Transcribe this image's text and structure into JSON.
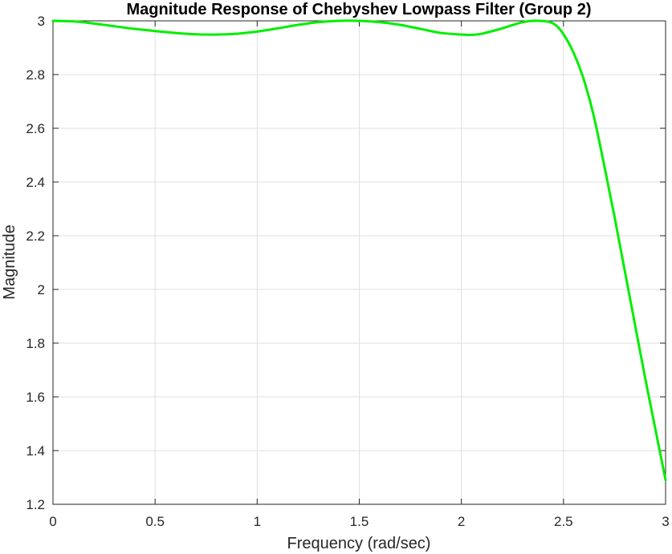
{
  "chart_data": {
    "type": "line",
    "title": "Magnitude Response of Chebyshev Lowpass Filter (Group 2)",
    "xlabel": "Frequency (rad/sec)",
    "ylabel": "Magnitude",
    "xlim": [
      0,
      3
    ],
    "ylim": [
      1.2,
      3
    ],
    "xticks": [
      "0",
      "0.5",
      "1",
      "1.5",
      "2",
      "2.5",
      "3"
    ],
    "yticks": [
      "1.2",
      "1.4",
      "1.6",
      "1.8",
      "2",
      "2.2",
      "2.4",
      "2.6",
      "2.8",
      "3"
    ],
    "grid": true,
    "series": [
      {
        "color": "#00ee00",
        "x": [
          0,
          0.1,
          0.2,
          0.3,
          0.4,
          0.5,
          0.6,
          0.7,
          0.78,
          0.9,
          1.0,
          1.1,
          1.2,
          1.3,
          1.4,
          1.5,
          1.6,
          1.7,
          1.8,
          1.9,
          2.0,
          2.05,
          2.1,
          2.2,
          2.3,
          2.38,
          2.45,
          2.5,
          2.55,
          2.6,
          2.65,
          2.7,
          2.75,
          2.8,
          2.85,
          2.9,
          2.95,
          3.0
        ],
        "y": [
          3.0,
          2.998,
          2.99,
          2.98,
          2.97,
          2.962,
          2.955,
          2.95,
          2.949,
          2.952,
          2.96,
          2.972,
          2.985,
          2.995,
          3.0,
          3.0,
          2.995,
          2.985,
          2.97,
          2.955,
          2.949,
          2.948,
          2.952,
          2.972,
          2.995,
          3.0,
          2.99,
          2.95,
          2.88,
          2.78,
          2.64,
          2.46,
          2.27,
          2.07,
          1.87,
          1.67,
          1.48,
          1.29
        ]
      }
    ]
  }
}
